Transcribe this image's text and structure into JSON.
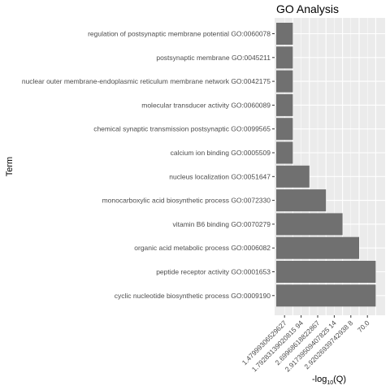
{
  "chart_data": {
    "type": "bar",
    "orientation": "horizontal",
    "title": "GO Analysis",
    "xlabel": {
      "prefix": "-log",
      "subscript": "10",
      "suffix": "(Q)"
    },
    "ylabel": "Term",
    "categories": [
      "regulation of postsynaptic membrane potential GO:0060078",
      "postsynaptic membrane GO:0045211",
      "nuclear outer membrane-endoplasmic reticulum membrane network GO:0042175",
      "molecular transducer activity GO:0060089",
      "chemical synaptic transmission postsynaptic GO:0099565",
      "calcium ion binding GO:0005509",
      "nucleus localization GO:0051647",
      "monocarboxylic acid biosynthetic process GO:0072330",
      "vitamin B6 binding GO:0070279",
      "organic acid metabolic process GO:0006082",
      "peptide receptor activity GO:0001653",
      "cyclic nucleotide biosynthetic process GO:0009190"
    ],
    "x_tick_labels": [
      "1.47999306529627",
      "1.79283139020815 94",
      "2.69968618822867",
      "2.91739509407825 14",
      "2.92026939742938 8",
      "70.0"
    ],
    "x_positions": [
      1,
      1,
      1,
      1,
      1,
      1,
      2,
      3,
      4,
      5,
      6,
      6
    ],
    "grid": true,
    "colors": {
      "bar": "#707070",
      "panel": "#ebebeb",
      "grid": "#ffffff"
    }
  }
}
